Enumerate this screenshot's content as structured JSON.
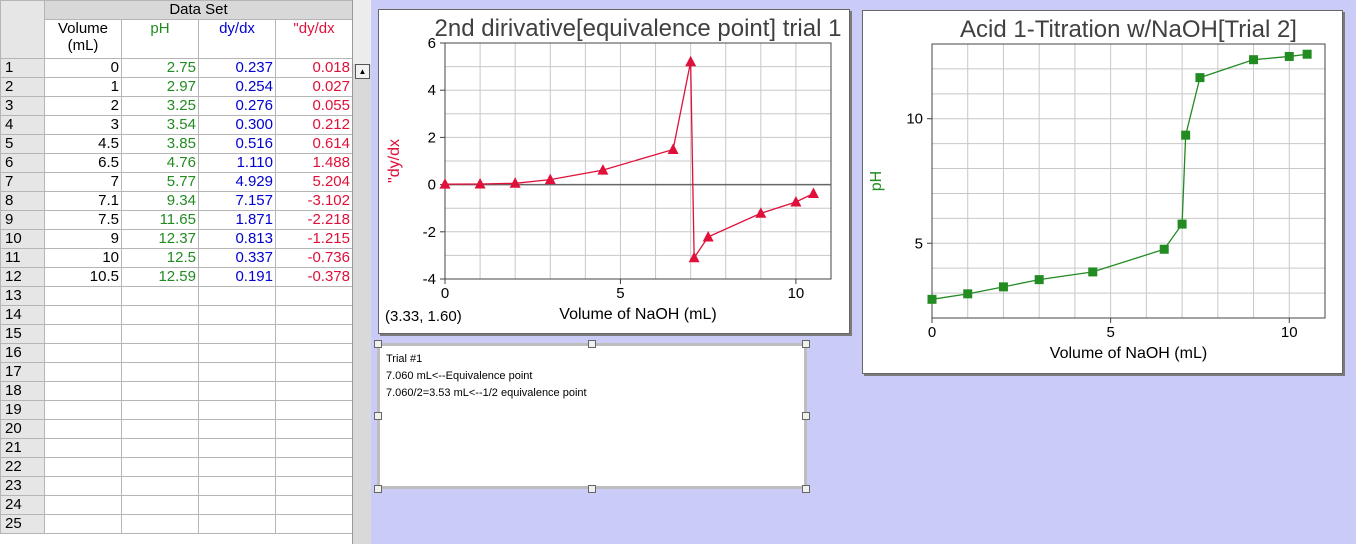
{
  "table": {
    "title": "Data Set",
    "headers": {
      "volume": "Volume",
      "volume_unit": "(mL)",
      "ph": "pH",
      "dydx": "dy/dx",
      "d2": "\"dy/dx"
    },
    "row_numbers": [
      "1",
      "2",
      "3",
      "4",
      "5",
      "6",
      "7",
      "8",
      "9",
      "10",
      "11",
      "12",
      "13",
      "14",
      "15",
      "16",
      "17",
      "18",
      "19",
      "20",
      "21",
      "22",
      "23",
      "24",
      "25"
    ],
    "rows": [
      [
        "0",
        "2.75",
        "0.237",
        "0.018"
      ],
      [
        "1",
        "2.97",
        "0.254",
        "0.027"
      ],
      [
        "2",
        "3.25",
        "0.276",
        "0.055"
      ],
      [
        "3",
        "3.54",
        "0.300",
        "0.212"
      ],
      [
        "4.5",
        "3.85",
        "0.516",
        "0.614"
      ],
      [
        "6.5",
        "4.76",
        "1.110",
        "1.488"
      ],
      [
        "7",
        "5.77",
        "4.929",
        "5.204"
      ],
      [
        "7.1",
        "9.34",
        "7.157",
        "-3.102"
      ],
      [
        "7.5",
        "11.65",
        "1.871",
        "-2.218"
      ],
      [
        "9",
        "12.37",
        "0.813",
        "-1.215"
      ],
      [
        "10",
        "12.5",
        "0.337",
        "-0.736"
      ],
      [
        "10.5",
        "12.59",
        "0.191",
        "-0.378"
      ]
    ]
  },
  "graph1": {
    "coord_readout": "(3.33, 1.60)"
  },
  "graph2": {},
  "note": {
    "lines": [
      "Trial #1",
      "7.060 mL<--Equivalence point",
      "7.060/2=3.53 mL<--1/2 equivalence point"
    ]
  },
  "colors": {
    "ph": "#228b22",
    "dydx": "#0000d0",
    "d2": "#e0103a",
    "background": "#cbcbf7"
  },
  "chart_data": [
    {
      "type": "line",
      "title": "2nd dirivative[equivalence point] trial 1",
      "xlabel": "Volume of NaOH (mL)",
      "ylabel": "\"dy/dx",
      "xlim": [
        0,
        11
      ],
      "ylim": [
        -4,
        6
      ],
      "xticks": [
        0,
        5,
        10
      ],
      "yticks": [
        -4,
        -2,
        0,
        2,
        4,
        6
      ],
      "grid": true,
      "marker": "triangle",
      "color": "#e0103a",
      "x": [
        0,
        1,
        2,
        3,
        4.5,
        6.5,
        7,
        7.1,
        7.5,
        9,
        10,
        10.5
      ],
      "y": [
        0.018,
        0.027,
        0.055,
        0.212,
        0.614,
        1.488,
        5.204,
        -3.102,
        -2.218,
        -1.215,
        -0.736,
        -0.378
      ]
    },
    {
      "type": "line",
      "title": "Acid 1-Titration w/NaOH[Trial 2]",
      "xlabel": "Volume of NaOH (mL)",
      "ylabel": "pH",
      "xlim": [
        0,
        11
      ],
      "ylim": [
        2,
        13
      ],
      "xticks": [
        0,
        5,
        10
      ],
      "yticks": [
        5,
        10
      ],
      "grid": true,
      "marker": "square",
      "color": "#228b22",
      "x": [
        0,
        1,
        2,
        3,
        4.5,
        6.5,
        7,
        7.1,
        7.5,
        9,
        10,
        10.5
      ],
      "y": [
        2.75,
        2.97,
        3.25,
        3.54,
        3.85,
        4.76,
        5.77,
        9.34,
        11.65,
        12.37,
        12.5,
        12.59
      ]
    }
  ]
}
